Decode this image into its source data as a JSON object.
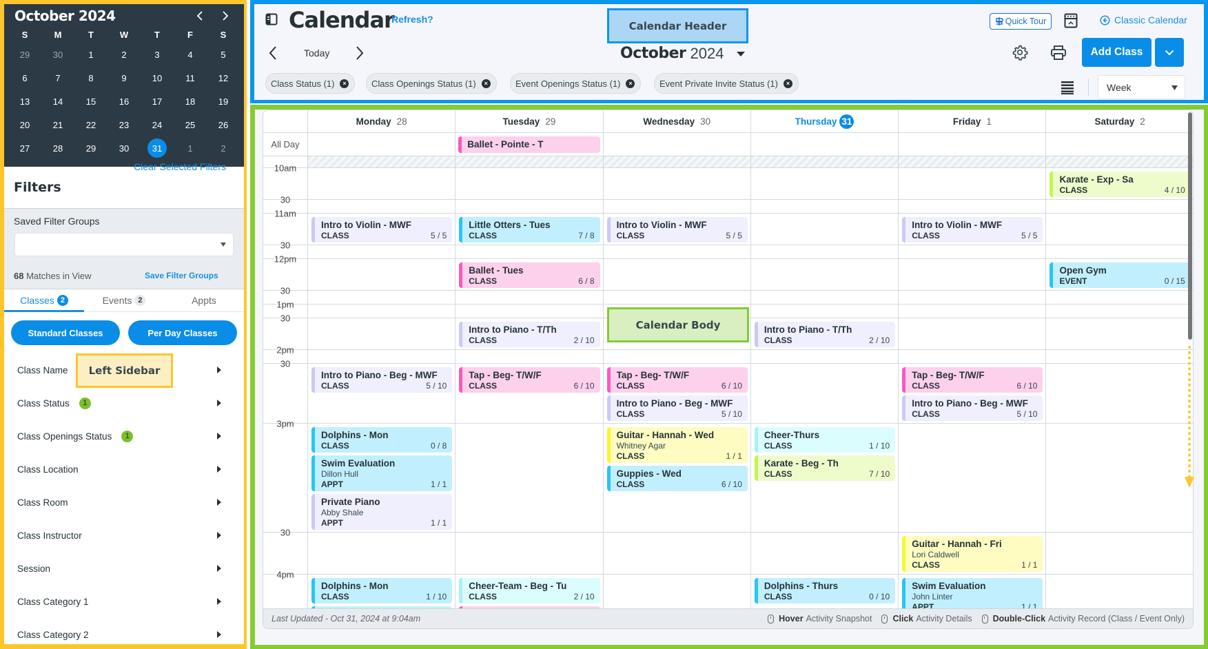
{
  "colors": {
    "lavender": {
      "bg": "#efeffd",
      "accent": "#cacaf5"
    },
    "cyan": {
      "bg": "#c2effd",
      "accent": "#29c5f6"
    },
    "pink": {
      "bg": "#fdd0ec",
      "accent": "#f55bbf"
    },
    "yellow": {
      "bg": "#fefcc0",
      "accent": "#f7f72e"
    },
    "lime": {
      "bg": "#eefccb",
      "accent": "#c6f44f"
    },
    "lightcyan": {
      "bg": "#dcfdfe",
      "accent": "#a8f1f6"
    },
    "sidebar_frame": "#fdc52c",
    "header_frame": "#0896ee",
    "body_frame": "#84cc34",
    "accent": "#0a8de6"
  },
  "annotations": {
    "sidebar": "Left Sidebar",
    "header": "Calendar Header",
    "body": "Calendar Body"
  },
  "mini_calendar": {
    "title": "October 2024",
    "weekdays": [
      "S",
      "M",
      "T",
      "W",
      "T",
      "F",
      "S"
    ],
    "weeks": [
      [
        {
          "d": "29",
          "other": true
        },
        {
          "d": "30",
          "other": true
        },
        {
          "d": "1"
        },
        {
          "d": "2"
        },
        {
          "d": "3"
        },
        {
          "d": "4"
        },
        {
          "d": "5"
        }
      ],
      [
        {
          "d": "6"
        },
        {
          "d": "7"
        },
        {
          "d": "8"
        },
        {
          "d": "9"
        },
        {
          "d": "10"
        },
        {
          "d": "11"
        },
        {
          "d": "12"
        }
      ],
      [
        {
          "d": "13"
        },
        {
          "d": "14"
        },
        {
          "d": "15"
        },
        {
          "d": "16"
        },
        {
          "d": "17"
        },
        {
          "d": "18"
        },
        {
          "d": "19"
        }
      ],
      [
        {
          "d": "20"
        },
        {
          "d": "21"
        },
        {
          "d": "22"
        },
        {
          "d": "23"
        },
        {
          "d": "24"
        },
        {
          "d": "25"
        },
        {
          "d": "26"
        }
      ],
      [
        {
          "d": "27"
        },
        {
          "d": "28"
        },
        {
          "d": "29"
        },
        {
          "d": "30"
        },
        {
          "d": "31",
          "selected": true
        },
        {
          "d": "1",
          "other": true
        },
        {
          "d": "2",
          "other": true
        }
      ]
    ]
  },
  "filters": {
    "title": "Filters",
    "clear_label": "Clear Selected Filters",
    "saved_groups_label": "Saved Filter Groups",
    "saved_groups_value": "",
    "matches_count": "68",
    "matches_text": " Matches in View",
    "save_groups_label": "Save Filter Groups",
    "tabs": [
      {
        "label": "Classes",
        "badge": "2",
        "active": true
      },
      {
        "label": "Events",
        "badge": "2"
      },
      {
        "label": "Appts"
      }
    ],
    "standard_classes": "Standard Classes",
    "per_day_classes": "Per Day Classes",
    "items": [
      {
        "label": "Class Name"
      },
      {
        "label": "Class Status",
        "badge": "1"
      },
      {
        "label": "Class Openings Status",
        "badge": "1"
      },
      {
        "label": "Class Location"
      },
      {
        "label": "Class Room"
      },
      {
        "label": "Class Instructor"
      },
      {
        "label": "Session"
      },
      {
        "label": "Class Category 1"
      },
      {
        "label": "Class Category 2"
      }
    ]
  },
  "header": {
    "title": "Calendar",
    "refresh": "Refresh?",
    "today": "Today",
    "month": "October",
    "year": "2024",
    "quick_tour": "Quick Tour",
    "classic_calendar": "Classic Calendar",
    "add_class": "Add Class",
    "view": "Week",
    "chips": [
      "Class Status (1)",
      "Class Openings Status (1)",
      "Event Openings Status (1)",
      "Event Private Invite Status (1)"
    ]
  },
  "calendar": {
    "days": [
      {
        "name": "Monday",
        "num": "28"
      },
      {
        "name": "Tuesday",
        "num": "29"
      },
      {
        "name": "Wednesday",
        "num": "30"
      },
      {
        "name": "Thursday",
        "num": "31",
        "today": true
      },
      {
        "name": "Friday",
        "num": "1"
      },
      {
        "name": "Saturday",
        "num": "2"
      }
    ],
    "all_day_label": "All Day",
    "all_day": [
      [],
      [
        {
          "title": "Ballet - Pointe - T",
          "color": "pink"
        }
      ],
      [],
      [],
      [],
      []
    ],
    "rows": [
      {
        "label": "10am",
        "cells": [
          [],
          [],
          [],
          [],
          [],
          [
            {
              "title": "Karate - Exp - Sa",
              "type": "CLASS",
              "count": "4 / 10",
              "color": "lime"
            }
          ]
        ]
      },
      {
        "label": "30",
        "cells": [
          [],
          [],
          [],
          [],
          [],
          []
        ]
      },
      {
        "label": "11am",
        "cells": [
          [
            {
              "title": "Intro to Violin - MWF",
              "type": "CLASS",
              "count": "5 / 5",
              "color": "lavender"
            }
          ],
          [
            {
              "title": "Little Otters - Tues",
              "type": "CLASS",
              "count": "7 / 8",
              "color": "cyan"
            }
          ],
          [
            {
              "title": "Intro to Violin - MWF",
              "type": "CLASS",
              "count": "5 / 5",
              "color": "lavender"
            }
          ],
          [],
          [
            {
              "title": "Intro to Violin - MWF",
              "type": "CLASS",
              "count": "5 / 5",
              "color": "lavender"
            }
          ],
          []
        ]
      },
      {
        "label": "30",
        "cells": [
          [],
          [],
          [],
          [],
          [],
          []
        ]
      },
      {
        "label": "12pm",
        "cells": [
          [],
          [
            {
              "title": "Ballet - Tues",
              "type": "CLASS",
              "count": "6 / 8",
              "color": "pink"
            }
          ],
          [],
          [],
          [],
          [
            {
              "title": "Open Gym",
              "type": "EVENT",
              "count": "0 / 15",
              "color": "cyan"
            }
          ]
        ]
      },
      {
        "label": "30",
        "cells": [
          [],
          [],
          [],
          [],
          [],
          []
        ]
      },
      {
        "label": "1pm",
        "cells": [
          [],
          [],
          [],
          [],
          [],
          []
        ]
      },
      {
        "label": "30",
        "cells": [
          [],
          [
            {
              "title": "Intro to Piano - T/Th",
              "type": "CLASS",
              "count": "2 / 10",
              "color": "lavender"
            }
          ],
          [],
          [
            {
              "title": "Intro to Piano - T/Th",
              "type": "CLASS",
              "count": "2 / 10",
              "color": "lavender"
            }
          ],
          [],
          []
        ]
      },
      {
        "label": "2pm",
        "cells": [
          [],
          [],
          [],
          [],
          [],
          []
        ]
      },
      {
        "label": "30",
        "cells": [
          [
            {
              "title": "Intro to Piano - Beg - MWF",
              "type": "CLASS",
              "count": "5 / 10",
              "color": "lavender"
            }
          ],
          [
            {
              "title": "Tap - Beg- T/W/F",
              "type": "CLASS",
              "count": "6 / 10",
              "color": "pink"
            }
          ],
          [
            {
              "title": "Tap - Beg- T/W/F",
              "type": "CLASS",
              "count": "6 / 10",
              "color": "pink"
            },
            {
              "title": "Intro to Piano - Beg - MWF",
              "type": "CLASS",
              "count": "5 / 10",
              "color": "lavender"
            }
          ],
          [],
          [
            {
              "title": "Tap - Beg- T/W/F",
              "type": "CLASS",
              "count": "6 / 10",
              "color": "pink"
            },
            {
              "title": "Intro to Piano - Beg - MWF",
              "type": "CLASS",
              "count": "5 / 10",
              "color": "lavender"
            }
          ],
          []
        ]
      },
      {
        "label": "3pm",
        "cells": [
          [
            {
              "title": "Dolphins - Mon",
              "type": "CLASS",
              "count": "0 / 8",
              "color": "cyan"
            },
            {
              "title": "Swim Evaluation",
              "person": "Dillon Hull",
              "type": "APPT",
              "count": "1 / 1",
              "color": "cyan"
            },
            {
              "title": "Private Piano",
              "person": "Abby Shale",
              "type": "APPT",
              "count": "1 / 1",
              "color": "lavender"
            }
          ],
          [],
          [
            {
              "title": "Guitar - Hannah - Wed",
              "person": "Whitney Agar",
              "type": "CLASS",
              "count": "1 / 1",
              "color": "yellow"
            },
            {
              "title": "Guppies - Wed",
              "type": "CLASS",
              "count": "6 / 10",
              "color": "cyan"
            }
          ],
          [
            {
              "title": "Cheer-Thurs",
              "type": "CLASS",
              "count": "1 / 10",
              "color": "lightcyan"
            },
            {
              "title": "Karate - Beg - Th",
              "type": "CLASS",
              "count": "7 / 10",
              "color": "lime"
            }
          ],
          [],
          []
        ]
      },
      {
        "label": "30",
        "cells": [
          [],
          [],
          [],
          [],
          [
            {
              "title": "Guitar - Hannah - Fri",
              "person": "Lori Caldwell",
              "type": "CLASS",
              "count": "1 / 1",
              "color": "yellow"
            }
          ],
          []
        ]
      },
      {
        "label": "4pm",
        "cells": [
          [
            {
              "title": "Dolphins - Mon",
              "type": "CLASS",
              "count": "1 / 10",
              "color": "cyan"
            },
            {
              "color": "cyan"
            }
          ],
          [
            {
              "title": "Cheer-Team - Beg - Tu",
              "type": "CLASS",
              "count": "2 / 10",
              "color": "lightcyan"
            },
            {
              "color": "pink"
            }
          ],
          [],
          [
            {
              "title": "Dolphins - Thurs",
              "type": "CLASS",
              "count": "0 / 10",
              "color": "cyan"
            }
          ],
          [
            {
              "title": "Swim Evaluation",
              "person": "John Linter",
              "type": "APPT",
              "count": "1 / 1",
              "color": "cyan"
            }
          ],
          []
        ]
      }
    ]
  },
  "footer": {
    "last_updated": "Last Updated - Oct 31, 2024 at 9:04am",
    "hints": [
      {
        "key": "Hover",
        "text": "Activity Snapshot"
      },
      {
        "key": "Click",
        "text": "Activity Details"
      },
      {
        "key": "Double-Click",
        "text": "Activity Record (Class / Event Only)"
      }
    ]
  }
}
